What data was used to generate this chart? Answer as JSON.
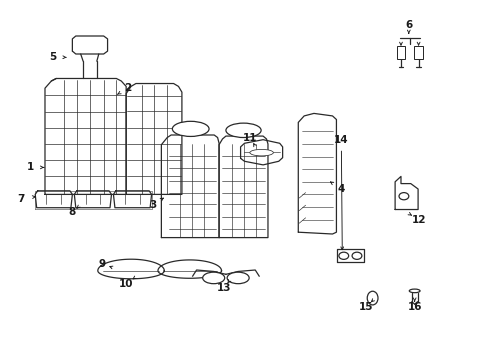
{
  "background_color": "#ffffff",
  "line_color": "#2a2a2a",
  "label_color": "#1a1a1a",
  "figsize": [
    4.89,
    3.6
  ],
  "dpi": 100,
  "labels": {
    "1": [
      0.062,
      0.535,
      0.102,
      0.535
    ],
    "2": [
      0.262,
      0.755,
      0.23,
      0.73
    ],
    "3": [
      0.312,
      0.43,
      0.34,
      0.455
    ],
    "4": [
      0.698,
      0.475,
      0.67,
      0.5
    ],
    "5": [
      0.108,
      0.842,
      0.148,
      0.84
    ],
    "6": [
      0.836,
      0.93,
      0.836,
      0.9
    ],
    "7": [
      0.042,
      0.448,
      0.08,
      0.455
    ],
    "8": [
      0.148,
      0.41,
      0.16,
      0.425
    ],
    "9": [
      0.208,
      0.268,
      0.228,
      0.258
    ],
    "10": [
      0.258,
      0.212,
      0.275,
      0.228
    ],
    "11": [
      0.512,
      0.618,
      0.52,
      0.598
    ],
    "12": [
      0.858,
      0.388,
      0.838,
      0.405
    ],
    "13": [
      0.458,
      0.2,
      0.468,
      0.218
    ],
    "14": [
      0.698,
      0.61,
      0.7,
      0.29
    ],
    "15": [
      0.748,
      0.148,
      0.762,
      0.165
    ],
    "16": [
      0.848,
      0.148,
      0.848,
      0.168
    ]
  }
}
